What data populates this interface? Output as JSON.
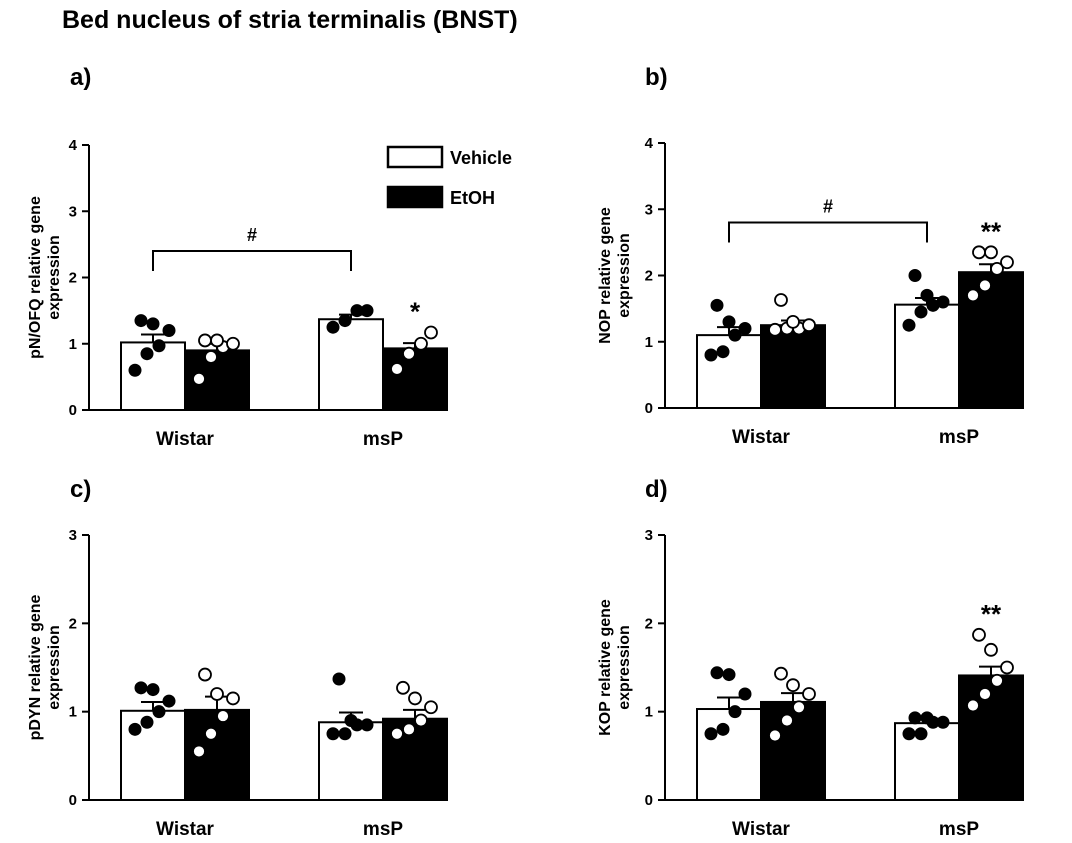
{
  "figure_title": "Bed nucleus of stria terminalis (BNST)",
  "legend": [
    {
      "label": "Vehicle",
      "fill": "#ffffff"
    },
    {
      "label": "EtOH",
      "fill": "#000000"
    }
  ],
  "chart_data": [
    {
      "panel": "a)",
      "type": "bar",
      "ylabel_lines": [
        "pN/OFQ relative gene",
        "expression"
      ],
      "ylim": [
        0,
        4
      ],
      "yticks": [
        0,
        1,
        2,
        3,
        4
      ],
      "categories": [
        "Wistar",
        "msP"
      ],
      "series": [
        {
          "name": "Vehicle",
          "values": [
            1.02,
            1.37
          ],
          "sem": [
            0.12,
            0.07
          ],
          "points": [
            [
              0.6,
              0.85,
              0.97,
              1.2,
              1.3,
              1.35
            ],
            [
              1.25,
              1.35,
              1.5,
              1.5
            ]
          ]
        },
        {
          "name": "EtOH",
          "values": [
            0.9,
            0.93
          ],
          "sem": [
            0.1,
            0.08
          ],
          "points": [
            [
              0.47,
              0.8,
              0.95,
              1.0,
              1.05,
              1.05
            ],
            [
              0.62,
              0.85,
              1.0,
              1.17
            ]
          ]
        }
      ],
      "bracket": {
        "from": "Wistar",
        "to": "msP",
        "label": "#",
        "y": 2.4
      },
      "annotations": [
        {
          "category": "msP",
          "series": "EtOH",
          "label": "*"
        }
      ]
    },
    {
      "panel": "b)",
      "type": "bar",
      "ylabel_lines": [
        "NOP relative gene",
        "expression"
      ],
      "ylim": [
        0,
        4
      ],
      "yticks": [
        0,
        1,
        2,
        3,
        4
      ],
      "categories": [
        "Wistar",
        "msP"
      ],
      "series": [
        {
          "name": "Vehicle",
          "values": [
            1.1,
            1.56
          ],
          "sem": [
            0.12,
            0.1
          ],
          "points": [
            [
              0.8,
              0.85,
              1.1,
              1.2,
              1.3,
              1.55
            ],
            [
              1.25,
              1.45,
              1.55,
              1.6,
              1.7,
              2.0
            ]
          ]
        },
        {
          "name": "EtOH",
          "values": [
            1.25,
            2.05
          ],
          "sem": [
            0.07,
            0.12
          ],
          "points": [
            [
              1.18,
              1.2,
              1.2,
              1.25,
              1.3,
              1.63
            ],
            [
              1.7,
              1.85,
              2.1,
              2.2,
              2.35,
              2.35
            ]
          ]
        }
      ],
      "bracket": {
        "from": "Wistar",
        "to": "msP",
        "label": "#",
        "y": 2.8
      },
      "annotations": [
        {
          "category": "msP",
          "series": "EtOH",
          "label": "**"
        }
      ]
    },
    {
      "panel": "c)",
      "type": "bar",
      "ylabel_lines": [
        "pDYN relative gene",
        "expression"
      ],
      "ylim": [
        0,
        3
      ],
      "yticks": [
        0,
        1,
        2,
        3
      ],
      "categories": [
        "Wistar",
        "msP"
      ],
      "series": [
        {
          "name": "Vehicle",
          "values": [
            1.01,
            0.88
          ],
          "sem": [
            0.1,
            0.11
          ],
          "points": [
            [
              0.8,
              0.88,
              1.0,
              1.12,
              1.25,
              1.27
            ],
            [
              0.75,
              0.75,
              0.85,
              0.85,
              0.9,
              1.37
            ]
          ]
        },
        {
          "name": "EtOH",
          "values": [
            1.02,
            0.92
          ],
          "sem": [
            0.15,
            0.1
          ],
          "points": [
            [
              0.55,
              0.75,
              0.95,
              1.15,
              1.2,
              1.42
            ],
            [
              0.75,
              0.8,
              0.9,
              1.05,
              1.15,
              1.27
            ]
          ]
        }
      ],
      "annotations": []
    },
    {
      "panel": "d)",
      "type": "bar",
      "ylabel_lines": [
        "KOP relative gene",
        "expression"
      ],
      "ylim": [
        0,
        3
      ],
      "yticks": [
        0,
        1,
        2,
        3
      ],
      "categories": [
        "Wistar",
        "msP"
      ],
      "series": [
        {
          "name": "Vehicle",
          "values": [
            1.03,
            0.87
          ],
          "sem": [
            0.13,
            0.05
          ],
          "points": [
            [
              0.75,
              0.8,
              1.0,
              1.2,
              1.42,
              1.44
            ],
            [
              0.75,
              0.75,
              0.88,
              0.88,
              0.93,
              0.93
            ]
          ]
        },
        {
          "name": "EtOH",
          "values": [
            1.11,
            1.41
          ],
          "sem": [
            0.1,
            0.1
          ],
          "points": [
            [
              0.73,
              0.9,
              1.05,
              1.2,
              1.3,
              1.43
            ],
            [
              1.07,
              1.2,
              1.35,
              1.5,
              1.7,
              1.87
            ]
          ]
        }
      ],
      "annotations": [
        {
          "category": "msP",
          "series": "EtOH",
          "label": "**"
        }
      ]
    }
  ]
}
